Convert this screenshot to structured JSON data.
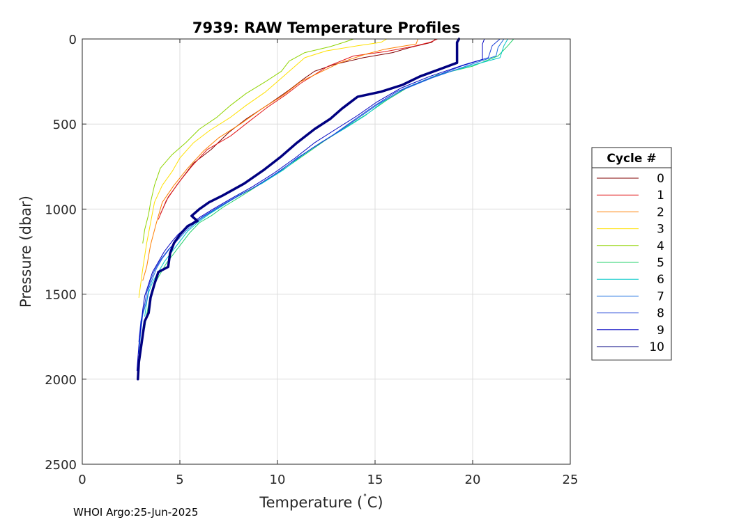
{
  "chart_data": {
    "type": "line",
    "title": "7939: RAW Temperature Profiles",
    "xlabel": "Temperature (",
    "xlabel_unit": "C)",
    "xlabel_degree": "˚",
    "ylabel": "Pressure (dbar)",
    "xlim": [
      0,
      25
    ],
    "ylim": [
      0,
      2500
    ],
    "y_reversed": true,
    "xticks": [
      0,
      5,
      10,
      15,
      20,
      25
    ],
    "yticks": [
      0,
      500,
      1000,
      1500,
      2000,
      2500
    ],
    "grid": true,
    "legend": {
      "title": "Cycle #",
      "placement": "right"
    },
    "series": [
      {
        "name": "0",
        "color": "#800000",
        "bold": false,
        "points": [
          [
            18.1,
            0
          ],
          [
            17.9,
            20
          ],
          [
            16.8,
            50
          ],
          [
            15.9,
            80
          ],
          [
            14.4,
            110
          ],
          [
            12.9,
            150
          ],
          [
            11.9,
            190
          ],
          [
            11.4,
            230
          ],
          [
            10.6,
            300
          ],
          [
            9.6,
            380
          ],
          [
            8.4,
            470
          ],
          [
            7.5,
            550
          ],
          [
            6.6,
            650
          ],
          [
            5.7,
            730
          ],
          [
            5.1,
            820
          ],
          [
            4.4,
            930
          ],
          [
            4.0,
            1030
          ]
        ]
      },
      {
        "name": "1",
        "color": "#e31a1c",
        "bold": false,
        "points": [
          [
            18.2,
            0
          ],
          [
            17.8,
            20
          ],
          [
            16.9,
            45
          ],
          [
            15.5,
            75
          ],
          [
            13.9,
            100
          ],
          [
            12.6,
            160
          ],
          [
            11.9,
            210
          ],
          [
            11.2,
            260
          ],
          [
            10.4,
            330
          ],
          [
            9.5,
            400
          ],
          [
            8.6,
            480
          ],
          [
            7.6,
            570
          ],
          [
            6.4,
            650
          ],
          [
            5.6,
            750
          ],
          [
            4.9,
            850
          ],
          [
            4.3,
            950
          ],
          [
            3.9,
            1060
          ]
        ]
      },
      {
        "name": "2",
        "color": "#ff7f00",
        "bold": false,
        "points": [
          [
            17.2,
            0
          ],
          [
            17.1,
            30
          ],
          [
            15.5,
            60
          ],
          [
            14.5,
            90
          ],
          [
            13.2,
            140
          ],
          [
            12.1,
            200
          ],
          [
            11.2,
            250
          ],
          [
            10.3,
            330
          ],
          [
            9.2,
            410
          ],
          [
            8.1,
            500
          ],
          [
            7.0,
            580
          ],
          [
            6.2,
            660
          ],
          [
            5.4,
            760
          ],
          [
            4.7,
            860
          ],
          [
            4.1,
            960
          ],
          [
            3.8,
            1080
          ],
          [
            3.5,
            1210
          ],
          [
            3.3,
            1340
          ],
          [
            3.1,
            1420
          ]
        ]
      },
      {
        "name": "3",
        "color": "#ffe000",
        "bold": false,
        "points": [
          [
            15.6,
            0
          ],
          [
            15.3,
            20
          ],
          [
            14.1,
            40
          ],
          [
            12.5,
            70
          ],
          [
            11.4,
            110
          ],
          [
            10.9,
            160
          ],
          [
            10.2,
            230
          ],
          [
            9.4,
            310
          ],
          [
            8.4,
            390
          ],
          [
            7.6,
            460
          ],
          [
            6.5,
            540
          ],
          [
            5.7,
            610
          ],
          [
            5.0,
            700
          ],
          [
            4.6,
            780
          ],
          [
            4.1,
            860
          ],
          [
            3.7,
            960
          ],
          [
            3.5,
            1080
          ],
          [
            3.3,
            1200
          ],
          [
            3.1,
            1350
          ],
          [
            2.9,
            1520
          ]
        ]
      },
      {
        "name": "4",
        "color": "#8fd400",
        "bold": false,
        "points": [
          [
            13.9,
            0
          ],
          [
            13.4,
            20
          ],
          [
            12.7,
            45
          ],
          [
            11.4,
            80
          ],
          [
            10.6,
            130
          ],
          [
            10.2,
            190
          ],
          [
            9.4,
            250
          ],
          [
            8.4,
            320
          ],
          [
            7.6,
            390
          ],
          [
            6.9,
            460
          ],
          [
            6.0,
            530
          ],
          [
            5.3,
            610
          ],
          [
            4.6,
            680
          ],
          [
            4.0,
            760
          ],
          [
            3.7,
            860
          ],
          [
            3.5,
            960
          ],
          [
            3.4,
            1030
          ],
          [
            3.2,
            1120
          ],
          [
            3.1,
            1200
          ]
        ]
      },
      {
        "name": "5",
        "color": "#22d16a",
        "bold": false,
        "points": [
          [
            22.1,
            0
          ],
          [
            21.8,
            40
          ],
          [
            21.3,
            100
          ],
          [
            20.0,
            160
          ],
          [
            18.2,
            210
          ],
          [
            16.6,
            290
          ],
          [
            15.6,
            360
          ],
          [
            14.6,
            440
          ],
          [
            13.5,
            520
          ],
          [
            12.4,
            600
          ],
          [
            11.4,
            680
          ],
          [
            10.4,
            760
          ],
          [
            9.3,
            840
          ],
          [
            8.2,
            920
          ],
          [
            7.2,
            990
          ],
          [
            6.6,
            1040
          ],
          [
            6.0,
            1080
          ],
          [
            5.5,
            1140
          ],
          [
            5.1,
            1200
          ],
          [
            4.7,
            1260
          ],
          [
            4.3,
            1320
          ],
          [
            4.0,
            1380
          ],
          [
            3.7,
            1440
          ],
          [
            3.5,
            1500
          ],
          [
            3.4,
            1560
          ],
          [
            3.3,
            1620
          ],
          [
            3.2,
            1700
          ]
        ]
      },
      {
        "name": "6",
        "color": "#00c8c8",
        "bold": false,
        "points": [
          [
            21.8,
            0
          ],
          [
            21.6,
            40
          ],
          [
            21.4,
            110
          ],
          [
            19.8,
            160
          ],
          [
            18.0,
            220
          ],
          [
            16.5,
            290
          ],
          [
            15.4,
            370
          ],
          [
            14.5,
            450
          ],
          [
            13.4,
            530
          ],
          [
            12.2,
            610
          ],
          [
            11.2,
            690
          ],
          [
            10.3,
            770
          ],
          [
            9.2,
            850
          ],
          [
            8.0,
            920
          ],
          [
            7.2,
            980
          ],
          [
            6.5,
            1030
          ],
          [
            5.9,
            1080
          ],
          [
            5.4,
            1130
          ],
          [
            5.0,
            1190
          ],
          [
            4.6,
            1250
          ],
          [
            4.2,
            1310
          ],
          [
            3.9,
            1370
          ],
          [
            3.6,
            1430
          ],
          [
            3.4,
            1490
          ],
          [
            3.3,
            1550
          ],
          [
            3.2,
            1630
          ]
        ]
      },
      {
        "name": "7",
        "color": "#1e6fe0",
        "bold": false,
        "points": [
          [
            21.6,
            0
          ],
          [
            21.3,
            50
          ],
          [
            21.2,
            100
          ],
          [
            19.9,
            150
          ],
          [
            17.9,
            230
          ],
          [
            16.4,
            300
          ],
          [
            15.2,
            380
          ],
          [
            14.2,
            460
          ],
          [
            13.2,
            540
          ],
          [
            12.1,
            620
          ],
          [
            11.0,
            700
          ],
          [
            10.1,
            780
          ],
          [
            9.0,
            860
          ],
          [
            7.9,
            930
          ],
          [
            7.0,
            990
          ],
          [
            6.3,
            1040
          ],
          [
            5.8,
            1080
          ],
          [
            5.3,
            1130
          ],
          [
            4.9,
            1180
          ],
          [
            4.5,
            1230
          ],
          [
            4.1,
            1290
          ],
          [
            3.8,
            1350
          ],
          [
            3.6,
            1410
          ],
          [
            3.4,
            1470
          ],
          [
            3.3,
            1540
          ],
          [
            3.1,
            1620
          ],
          [
            3.0,
            1720
          ],
          [
            2.9,
            1850
          ]
        ]
      },
      {
        "name": "8",
        "color": "#1a3fd6",
        "bold": false,
        "points": [
          [
            21.4,
            0
          ],
          [
            21.0,
            40
          ],
          [
            20.8,
            110
          ],
          [
            19.4,
            160
          ],
          [
            17.6,
            240
          ],
          [
            16.1,
            310
          ],
          [
            15.0,
            390
          ],
          [
            14.0,
            470
          ],
          [
            12.9,
            560
          ],
          [
            11.8,
            640
          ],
          [
            10.8,
            720
          ],
          [
            9.8,
            800
          ],
          [
            8.7,
            880
          ],
          [
            7.7,
            940
          ],
          [
            6.8,
            1000
          ],
          [
            6.1,
            1050
          ],
          [
            5.6,
            1090
          ],
          [
            5.1,
            1140
          ],
          [
            4.8,
            1190
          ],
          [
            4.4,
            1240
          ],
          [
            4.0,
            1300
          ],
          [
            3.7,
            1360
          ],
          [
            3.5,
            1420
          ],
          [
            3.3,
            1490
          ],
          [
            3.2,
            1560
          ],
          [
            3.0,
            1660
          ],
          [
            2.9,
            1780
          ]
        ]
      },
      {
        "name": "9",
        "color": "#0000c0",
        "bold": false,
        "points": [
          [
            20.6,
            0
          ],
          [
            20.5,
            30
          ],
          [
            20.5,
            120
          ],
          [
            19.6,
            150
          ],
          [
            17.8,
            220
          ],
          [
            16.3,
            290
          ],
          [
            15.1,
            370
          ],
          [
            14.1,
            450
          ],
          [
            13.0,
            530
          ],
          [
            11.9,
            610
          ],
          [
            10.9,
            700
          ],
          [
            9.8,
            790
          ],
          [
            8.7,
            870
          ],
          [
            7.6,
            940
          ],
          [
            6.7,
            1000
          ],
          [
            6.0,
            1050
          ],
          [
            5.4,
            1100
          ],
          [
            4.9,
            1150
          ],
          [
            4.6,
            1190
          ],
          [
            4.2,
            1250
          ],
          [
            3.9,
            1310
          ],
          [
            3.6,
            1370
          ],
          [
            3.4,
            1440
          ],
          [
            3.2,
            1510
          ],
          [
            3.1,
            1590
          ],
          [
            3.0,
            1690
          ],
          [
            2.9,
            1800
          ],
          [
            2.8,
            1950
          ]
        ]
      },
      {
        "name": "10",
        "color": "#000080",
        "bold": true,
        "points": [
          [
            19.3,
            0
          ],
          [
            19.2,
            20
          ],
          [
            19.2,
            140
          ],
          [
            18.5,
            170
          ],
          [
            17.3,
            220
          ],
          [
            16.4,
            270
          ],
          [
            15.3,
            310
          ],
          [
            14.1,
            340
          ],
          [
            13.3,
            410
          ],
          [
            12.7,
            470
          ],
          [
            11.9,
            530
          ],
          [
            11.0,
            610
          ],
          [
            10.2,
            690
          ],
          [
            9.3,
            770
          ],
          [
            8.3,
            850
          ],
          [
            7.2,
            920
          ],
          [
            6.5,
            960
          ],
          [
            6.0,
            1000
          ],
          [
            5.6,
            1040
          ],
          [
            5.9,
            1070
          ],
          [
            5.4,
            1100
          ],
          [
            5.0,
            1150
          ],
          [
            4.7,
            1200
          ],
          [
            4.5,
            1260
          ],
          [
            4.4,
            1340
          ],
          [
            3.9,
            1370
          ],
          [
            3.7,
            1440
          ],
          [
            3.5,
            1520
          ],
          [
            3.4,
            1610
          ],
          [
            3.2,
            1660
          ],
          [
            3.1,
            1740
          ],
          [
            3.0,
            1820
          ],
          [
            2.9,
            1900
          ],
          [
            2.85,
            2000
          ]
        ]
      }
    ]
  },
  "footer": {
    "text": "WHOI Argo:25-Jun-2025"
  }
}
